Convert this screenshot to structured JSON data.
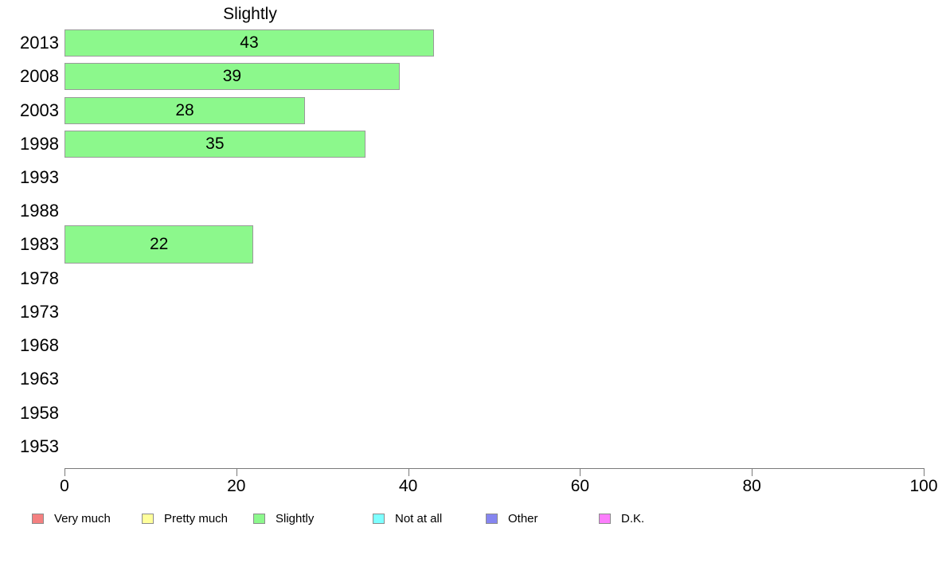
{
  "chart_data": {
    "type": "bar",
    "orientation": "horizontal",
    "title": "Slightly",
    "categories": [
      "2013",
      "2008",
      "2003",
      "1998",
      "1993",
      "1988",
      "1983",
      "1978",
      "1973",
      "1968",
      "1963",
      "1958",
      "1953"
    ],
    "values": [
      43,
      39,
      28,
      35,
      null,
      null,
      22,
      null,
      null,
      null,
      null,
      null,
      null
    ],
    "value_labels_shown": true,
    "xlim": [
      0,
      100
    ],
    "x_ticks": [
      "0",
      "20",
      "40",
      "60",
      "80",
      "100"
    ],
    "grid": false,
    "bar_color": "#8cf88c",
    "bar_border_color": "#9a9a9a",
    "legend_position": "bottom",
    "legend": [
      {
        "label": "Very much",
        "color": "#f48080"
      },
      {
        "label": "Pretty much",
        "color": "#ffff9b"
      },
      {
        "label": "Slightly",
        "color": "#8cf88c"
      },
      {
        "label": "Not at all",
        "color": "#7dffff"
      },
      {
        "label": "Other",
        "color": "#8585f0"
      },
      {
        "label": "D.K.",
        "color": "#fc7efc"
      }
    ]
  }
}
